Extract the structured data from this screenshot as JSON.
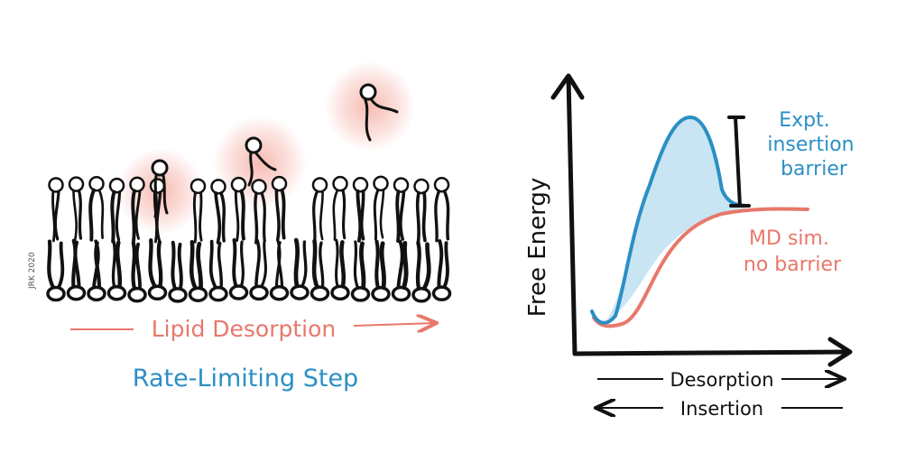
{
  "colors": {
    "ink": "#111111",
    "salmon": "#e8786a",
    "blue": "#2b8fc4",
    "blue_fill": "#9cd0ea",
    "glow": "#f4a59a"
  },
  "membrane": {
    "signature": "JRK 2020",
    "desorption_label": "Lipid Desorption",
    "caption": "Rate-Limiting Step"
  },
  "energy_plot": {
    "y_axis_label": "Free Energy",
    "expt_label_lines": [
      "Expt.",
      "insertion",
      "barrier"
    ],
    "md_label_lines": [
      "MD sim.",
      "no barrier"
    ],
    "desorption_label": "Desorption",
    "insertion_label": "Insertion"
  }
}
